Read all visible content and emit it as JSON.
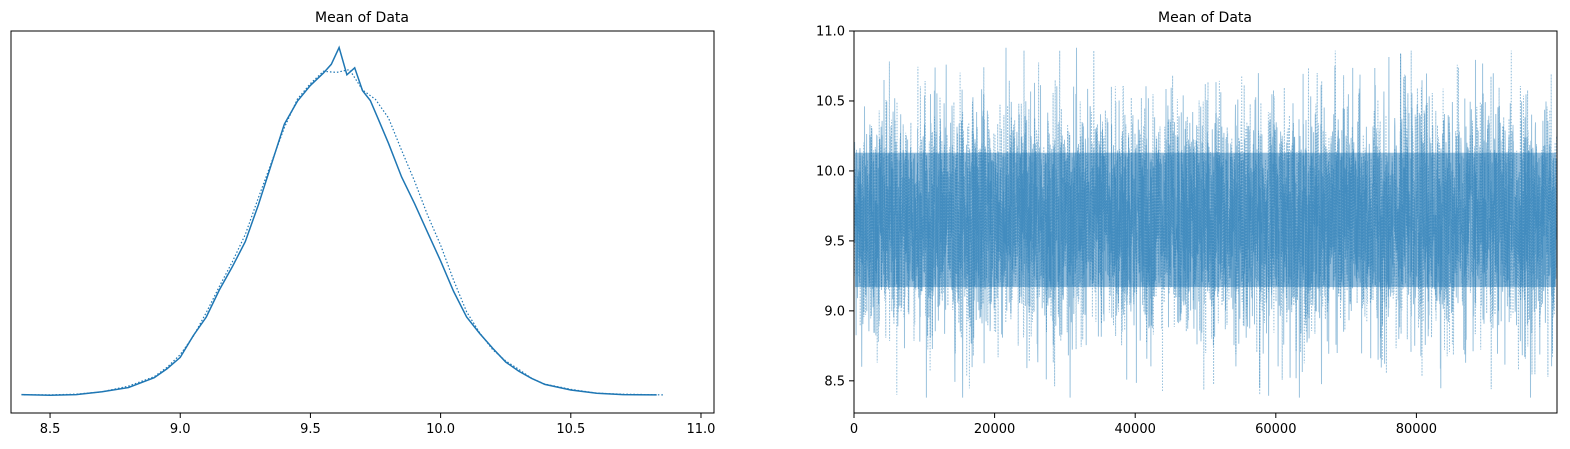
{
  "chart_data": [
    {
      "type": "line",
      "title": "Mean of Data",
      "xlabel": "",
      "ylabel": "",
      "xlim": [
        8.35,
        11.05
      ],
      "ylim": [
        0,
        1.0
      ],
      "xticks": [
        "8.5",
        "9.0",
        "9.5",
        "10.0",
        "10.5",
        "11.0"
      ],
      "xtick_values": [
        8.5,
        9.0,
        9.5,
        10.0,
        10.5,
        11.0
      ],
      "yticks_visible": false,
      "grid": false,
      "series": [
        {
          "line_style": "solid",
          "color": "#1f77b4",
          "x": [
            8.39,
            8.5,
            8.6,
            8.7,
            8.8,
            8.9,
            8.95,
            9.0,
            9.05,
            9.1,
            9.15,
            9.2,
            9.25,
            9.3,
            9.35,
            9.4,
            9.45,
            9.5,
            9.55,
            9.58,
            9.61,
            9.64,
            9.67,
            9.7,
            9.73,
            9.76,
            9.8,
            9.85,
            9.9,
            9.95,
            10.0,
            10.05,
            10.1,
            10.15,
            10.2,
            10.25,
            10.3,
            10.35,
            10.4,
            10.5,
            10.6,
            10.7,
            10.83
          ],
          "y": [
            0.004,
            0.002,
            0.004,
            0.012,
            0.024,
            0.052,
            0.078,
            0.11,
            0.172,
            0.225,
            0.302,
            0.368,
            0.44,
            0.545,
            0.66,
            0.775,
            0.84,
            0.885,
            0.92,
            0.945,
            0.993,
            0.915,
            0.935,
            0.87,
            0.842,
            0.79,
            0.72,
            0.624,
            0.548,
            0.466,
            0.385,
            0.298,
            0.225,
            0.178,
            0.136,
            0.097,
            0.071,
            0.05,
            0.033,
            0.017,
            0.008,
            0.004,
            0.003
          ]
        },
        {
          "line_style": "dotted",
          "color": "#1f77b4",
          "x": [
            8.4,
            8.5,
            8.6,
            8.7,
            8.8,
            8.9,
            8.95,
            9.0,
            9.05,
            9.1,
            9.15,
            9.2,
            9.25,
            9.3,
            9.35,
            9.4,
            9.45,
            9.5,
            9.55,
            9.6,
            9.65,
            9.7,
            9.75,
            9.8,
            9.85,
            9.9,
            9.95,
            10.0,
            10.05,
            10.1,
            10.15,
            10.2,
            10.25,
            10.3,
            10.35,
            10.4,
            10.5,
            10.6,
            10.7,
            10.86
          ],
          "y": [
            0.003,
            0.003,
            0.005,
            0.012,
            0.028,
            0.055,
            0.082,
            0.118,
            0.17,
            0.238,
            0.312,
            0.382,
            0.46,
            0.565,
            0.665,
            0.765,
            0.846,
            0.89,
            0.925,
            0.922,
            0.93,
            0.872,
            0.845,
            0.792,
            0.7,
            0.612,
            0.515,
            0.43,
            0.33,
            0.24,
            0.18,
            0.132,
            0.1,
            0.076,
            0.05,
            0.034,
            0.019,
            0.008,
            0.005,
            0.003
          ]
        }
      ]
    },
    {
      "type": "line",
      "title": "Mean of Data",
      "xlabel": "",
      "ylabel": "",
      "xlim": [
        0,
        99999
      ],
      "ylim": [
        8.27,
        11.0
      ],
      "xticks": [
        "0",
        "20000",
        "40000",
        "60000",
        "80000"
      ],
      "xtick_values": [
        0,
        20000,
        40000,
        60000,
        80000
      ],
      "yticks": [
        "8.5",
        "9.0",
        "9.5",
        "10.0",
        "10.5",
        "11.0"
      ],
      "ytick_values": [
        8.5,
        9.0,
        9.5,
        10.0,
        10.5,
        11.0
      ],
      "grid": false,
      "color": "#1f77b4",
      "series": [
        {
          "line_style": "solid",
          "center": 9.65,
          "band": [
            9.05,
            10.25
          ],
          "min": 8.38,
          "max": 10.88
        },
        {
          "line_style": "dotted",
          "center": 9.65,
          "band": [
            9.05,
            10.25
          ],
          "min": 8.4,
          "max": 10.86
        }
      ]
    }
  ]
}
